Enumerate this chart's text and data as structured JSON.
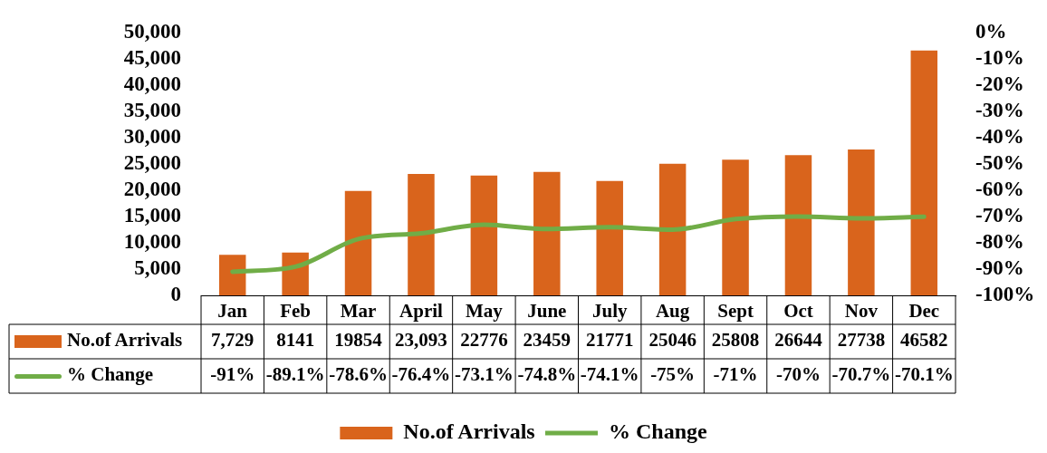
{
  "chart_data": {
    "type": "bar",
    "categories": [
      "Jan",
      "Feb",
      "Mar",
      "April",
      "May",
      "June",
      "July",
      "Aug",
      "Sept",
      "Oct",
      "Nov",
      "Dec"
    ],
    "series": [
      {
        "name": "No.of Arrivals",
        "color": "#d9641c",
        "values": [
          7729,
          8141,
          19854,
          23093,
          22776,
          23459,
          21771,
          25046,
          25808,
          26644,
          27738,
          46582
        ],
        "value_labels": [
          "7,729",
          "8141",
          "19854",
          "23,093",
          "22776",
          "23459",
          "21771",
          "25046",
          "25808",
          "26644",
          "27738",
          "46582"
        ]
      },
      {
        "name": "% Change",
        "type": "line",
        "axis": "y2",
        "color": "#70ad47",
        "values": [
          -91,
          -89.1,
          -78.6,
          -76.4,
          -73.1,
          -74.8,
          -74.1,
          -75,
          -71,
          -70,
          -70.7,
          -70.1
        ],
        "value_labels": [
          "-91%",
          "-89.1%",
          "-78.6%",
          "-76.4%",
          "-73.1%",
          "-74.8%",
          "-74.1%",
          "-75%",
          "-71%",
          "-70%",
          "-70.7%",
          "-70.1%"
        ]
      }
    ],
    "ylim": [
      0,
      50000
    ],
    "yticks": [
      0,
      {
        "value": 5000,
        "label": "5,000"
      },
      {
        "value": 10000,
        "label": "10,000"
      },
      {
        "value": 15000,
        "label": "15,000"
      },
      {
        "value": 20000,
        "label": "20,000"
      },
      {
        "value": 25000,
        "label": "25,000"
      },
      {
        "value": 30000,
        "label": "30,000"
      },
      {
        "value": 35000,
        "label": "35,000"
      },
      {
        "value": 40000,
        "label": "40,000"
      },
      {
        "value": 45000,
        "label": "45,000"
      },
      {
        "value": 50000,
        "label": "50,000"
      }
    ],
    "y2lim": [
      -100,
      0
    ],
    "y2ticks": [
      {
        "value": -100,
        "label": "-100%"
      },
      {
        "value": -90,
        "label": "-90%"
      },
      {
        "value": -80,
        "label": "-80%"
      },
      {
        "value": -70,
        "label": "-70%"
      },
      {
        "value": -60,
        "label": "-60%"
      },
      {
        "value": -50,
        "label": "-50%"
      },
      {
        "value": -40,
        "label": "-40%"
      },
      {
        "value": -30,
        "label": "-30%"
      },
      {
        "value": -20,
        "label": "-20%"
      },
      {
        "value": -10,
        "label": "-10%"
      },
      {
        "value": 0,
        "label": "0%"
      }
    ],
    "grid": false,
    "legend": "bottom",
    "marker": "none",
    "line_style": "solid"
  }
}
